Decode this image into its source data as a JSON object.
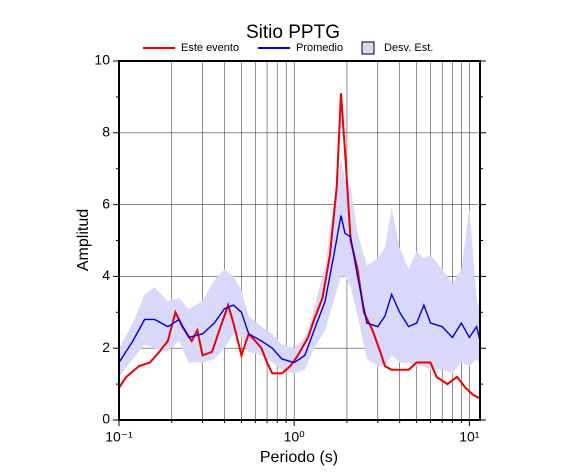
{
  "chart_data": {
    "type": "line",
    "title": "Sitio PPTG",
    "x_label": "Periodo (s)",
    "y_label": "Amplitud",
    "log_x": true,
    "grid": true,
    "xlim": [
      0.1,
      11.5
    ],
    "ylim": [
      0,
      10
    ],
    "xticks": [
      {
        "value": 0.1,
        "label": "10⁻¹"
      },
      {
        "value": 1,
        "label": "10⁰"
      },
      {
        "value": 10,
        "label": "10¹"
      }
    ],
    "xminor": [
      0.2,
      0.3,
      0.4,
      0.5,
      0.6,
      0.7,
      0.8,
      0.9,
      2,
      3,
      4,
      5,
      6,
      7,
      8,
      9
    ],
    "yticks": [
      0,
      2,
      4,
      6,
      8,
      10
    ],
    "yminor": [
      1,
      3,
      5,
      7,
      9
    ],
    "series": [
      {
        "name": "Este evento",
        "color": "#ee0000",
        "x": [
          0.1,
          0.11,
          0.13,
          0.15,
          0.17,
          0.19,
          0.21,
          0.23,
          0.26,
          0.28,
          0.3,
          0.34,
          0.38,
          0.42,
          0.45,
          0.5,
          0.55,
          0.6,
          0.65,
          0.7,
          0.75,
          0.85,
          0.95,
          1.05,
          1.2,
          1.3,
          1.45,
          1.6,
          1.75,
          1.85,
          1.95,
          2.1,
          2.3,
          2.5,
          2.8,
          3.1,
          3.3,
          3.6,
          4.0,
          4.5,
          5.0,
          5.5,
          6.0,
          6.5,
          7.5,
          8.5,
          9.5,
          10.5,
          11.5
        ],
        "values": [
          0.9,
          1.2,
          1.5,
          1.6,
          1.9,
          2.2,
          3.0,
          2.6,
          2.2,
          2.5,
          1.8,
          1.9,
          2.6,
          3.2,
          2.7,
          1.8,
          2.4,
          2.2,
          2.0,
          1.6,
          1.3,
          1.3,
          1.5,
          1.8,
          2.3,
          2.8,
          3.4,
          4.6,
          6.5,
          9.1,
          7.5,
          5.0,
          4.2,
          3.0,
          2.5,
          1.9,
          1.5,
          1.4,
          1.4,
          1.4,
          1.6,
          1.6,
          1.6,
          1.2,
          1.0,
          1.2,
          0.9,
          0.7,
          0.6
        ]
      },
      {
        "name": "Promedio",
        "color": "#0000dd",
        "x": [
          0.1,
          0.12,
          0.14,
          0.16,
          0.19,
          0.22,
          0.25,
          0.3,
          0.35,
          0.4,
          0.45,
          0.5,
          0.55,
          0.65,
          0.75,
          0.85,
          1.0,
          1.15,
          1.3,
          1.5,
          1.7,
          1.85,
          1.95,
          2.1,
          2.3,
          2.6,
          3.0,
          3.3,
          3.6,
          4.0,
          4.5,
          5.0,
          5.5,
          6.0,
          7.0,
          8.0,
          9.0,
          10.0,
          11.0,
          11.5
        ],
        "values": [
          1.6,
          2.2,
          2.8,
          2.8,
          2.6,
          2.8,
          2.3,
          2.4,
          2.7,
          3.1,
          3.2,
          3.0,
          2.4,
          2.2,
          2.0,
          1.7,
          1.6,
          1.8,
          2.5,
          3.3,
          4.7,
          5.7,
          5.2,
          5.1,
          4.0,
          2.7,
          2.6,
          2.9,
          3.5,
          3.0,
          2.6,
          2.7,
          3.2,
          2.7,
          2.6,
          2.3,
          2.7,
          2.3,
          2.6,
          2.2
        ]
      },
      {
        "name": "Desv. Est.",
        "color": "#d8d8fa",
        "x": [
          0.1,
          0.12,
          0.14,
          0.16,
          0.19,
          0.22,
          0.25,
          0.3,
          0.35,
          0.4,
          0.45,
          0.5,
          0.55,
          0.65,
          0.75,
          0.85,
          1.0,
          1.15,
          1.3,
          1.5,
          1.7,
          1.85,
          1.95,
          2.1,
          2.3,
          2.6,
          3.0,
          3.3,
          3.6,
          4.0,
          4.5,
          5.0,
          5.5,
          6.0,
          7.0,
          8.0,
          9.0,
          10.0,
          11.0,
          11.5
        ],
        "upper": [
          2.0,
          2.7,
          3.5,
          3.7,
          3.3,
          3.4,
          3.1,
          3.3,
          3.9,
          4.2,
          4.0,
          3.6,
          2.9,
          2.6,
          2.4,
          2.1,
          2.0,
          2.3,
          3.1,
          4.3,
          6.2,
          7.3,
          6.7,
          6.5,
          5.2,
          4.3,
          4.5,
          4.8,
          5.9,
          4.8,
          4.2,
          4.7,
          4.5,
          4.6,
          4.2,
          3.8,
          4.2,
          5.9,
          3.4,
          3.0
        ],
        "lower": [
          1.2,
          1.7,
          2.1,
          2.0,
          1.9,
          2.2,
          1.6,
          1.6,
          1.7,
          2.0,
          2.4,
          2.3,
          1.9,
          1.8,
          1.6,
          1.4,
          1.3,
          1.4,
          2.0,
          2.5,
          3.4,
          4.0,
          4.0,
          3.7,
          2.9,
          1.7,
          1.5,
          1.5,
          1.8,
          1.6,
          1.6,
          1.5,
          1.5,
          1.4,
          1.4,
          1.3,
          1.6,
          1.5,
          1.7,
          1.5
        ]
      }
    ]
  }
}
